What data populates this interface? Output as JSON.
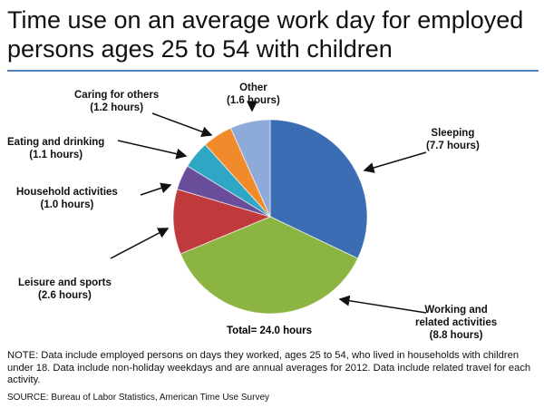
{
  "chart_data": {
    "type": "pie",
    "title": "Time use on an average work day for employed persons ages 25 to 54 with children",
    "total_label": "Total= 24.0 hours",
    "slices": [
      {
        "name": "Sleeping",
        "value": 7.7,
        "label": "(7.7 hours)",
        "color": "#3b6db4"
      },
      {
        "name": "Working and related activities",
        "value": 8.8,
        "label": "(8.8 hours)",
        "color": "#8cb443"
      },
      {
        "name": "Leisure and sports",
        "value": 2.6,
        "label": "(2.6 hours)",
        "color": "#c0393b"
      },
      {
        "name": "Household activities",
        "value": 1.0,
        "label": "(1.0 hours)",
        "color": "#6b4e9b"
      },
      {
        "name": "Eating and drinking",
        "value": 1.1,
        "label": "(1.1 hours)",
        "color": "#2ea6c4"
      },
      {
        "name": "Caring for others",
        "value": 1.2,
        "label": "(1.2 hours)",
        "color": "#f08a2b"
      },
      {
        "name": "Other",
        "value": 1.6,
        "label": "(1.6 hours)",
        "color": "#8eaad8"
      }
    ],
    "start_angle": "12 o'clock, clockwise"
  },
  "labels": {
    "sleeping": [
      "Sleeping",
      "(7.7 hours)"
    ],
    "working": [
      "Working and",
      "related activities",
      "(8.8 hours)"
    ],
    "leisure": [
      "Leisure and sports",
      "(2.6 hours)"
    ],
    "household": [
      "Household activities",
      "(1.0 hours)"
    ],
    "eating": [
      "Eating and drinking",
      "(1.1 hours)"
    ],
    "caring": [
      "Caring for others",
      "(1.2 hours)"
    ],
    "other": [
      "Other",
      "(1.6 hours)"
    ]
  },
  "note": "NOTE: Data include employed persons on days they worked, ages 25 to 54, who lived in households with children under 18. Data include non-holiday weekdays and are annual averages for 2012. Data include related travel for each activity.",
  "source": "SOURCE: Bureau of Labor Statistics, American Time Use Survey"
}
